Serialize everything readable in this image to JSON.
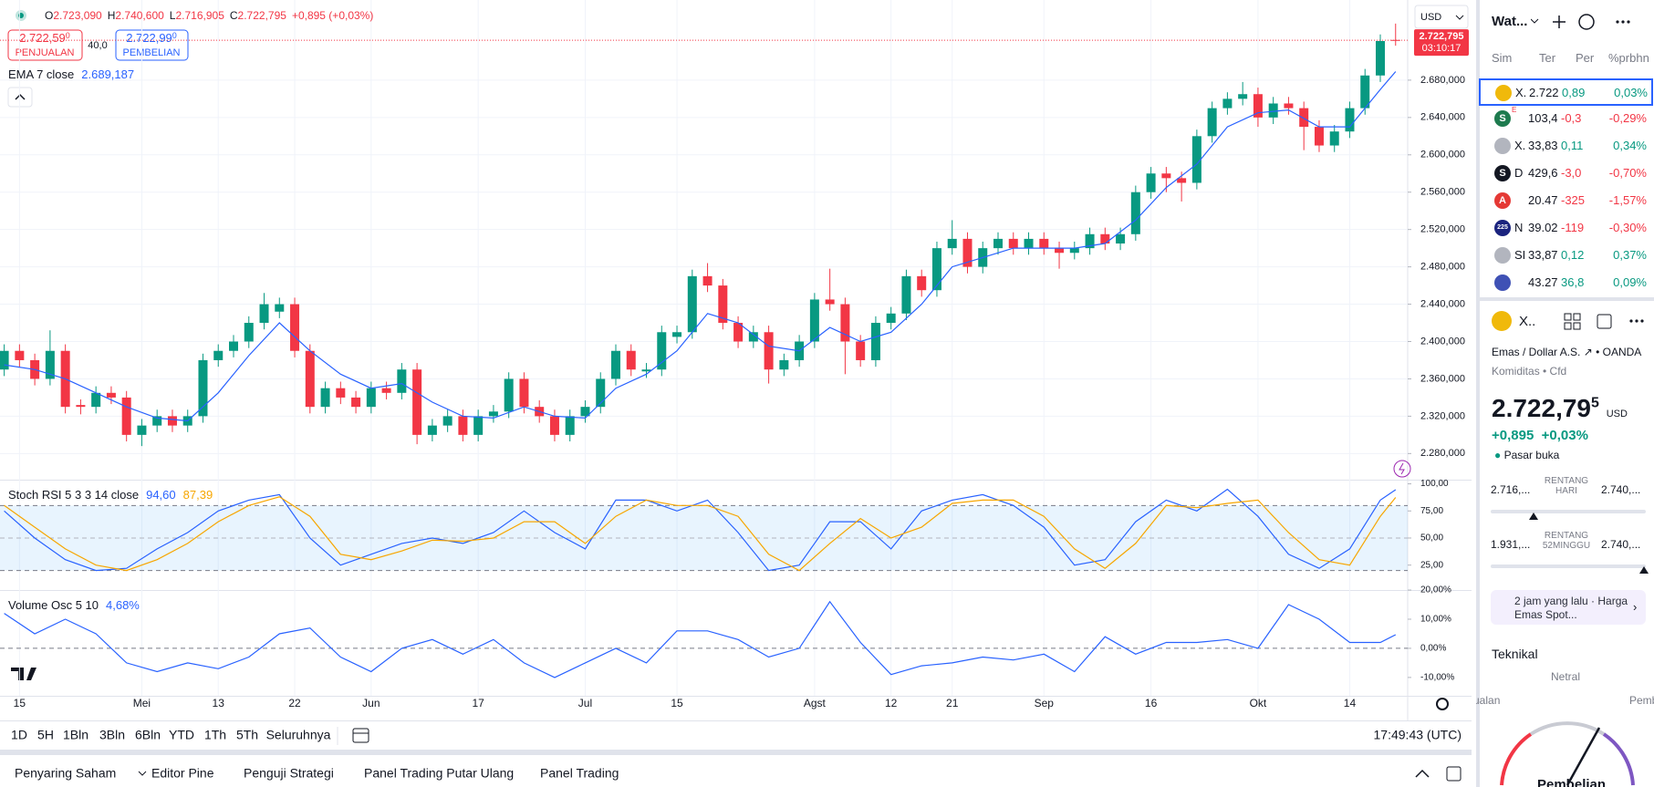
{
  "chart_data": [
    {
      "type": "candlestick",
      "categories": [
        null,
        "15",
        null,
        null,
        null,
        null,
        null,
        null,
        null,
        "Mei",
        null,
        null,
        null,
        null,
        "13",
        null,
        null,
        null,
        null,
        "22",
        null,
        null,
        null,
        null,
        "Jun",
        null,
        null,
        null,
        null,
        null,
        null,
        "17",
        null,
        null,
        null,
        null,
        null,
        null,
        "Jul",
        null,
        null,
        null,
        null,
        null,
        "15",
        null,
        null,
        null,
        null,
        null,
        null,
        null,
        null,
        "Agst",
        null,
        null,
        null,
        null,
        "12",
        null,
        null,
        null,
        "21",
        null,
        null,
        null,
        null,
        null,
        "Sep",
        null,
        null,
        null,
        null,
        null,
        null,
        "16",
        null,
        null,
        null,
        null,
        null,
        null,
        "Okt",
        null,
        null,
        null,
        null,
        null,
        "14",
        null,
        null,
        null
      ],
      "ohlc": [
        [
          2370,
          2397,
          2363,
          2390
        ],
        [
          2390,
          2397,
          2373,
          2380
        ],
        [
          2380,
          2387,
          2353,
          2360
        ],
        [
          2360,
          2412,
          2353,
          2390
        ],
        [
          2390,
          2397,
          2323,
          2330
        ],
        [
          2332,
          2338,
          2322,
          2330
        ],
        [
          2330,
          2352,
          2323,
          2345
        ],
        [
          2345,
          2352,
          2333,
          2340
        ],
        [
          2340,
          2347,
          2293,
          2300
        ],
        [
          2300,
          2317,
          2288,
          2310
        ],
        [
          2310,
          2327,
          2303,
          2320
        ],
        [
          2320,
          2327,
          2303,
          2310
        ],
        [
          2310,
          2327,
          2303,
          2320
        ],
        [
          2320,
          2387,
          2313,
          2380
        ],
        [
          2380,
          2397,
          2373,
          2390
        ],
        [
          2390,
          2407,
          2383,
          2400
        ],
        [
          2400,
          2427,
          2393,
          2420
        ],
        [
          2420,
          2452,
          2413,
          2440
        ],
        [
          2432,
          2447,
          2425,
          2440
        ],
        [
          2440,
          2447,
          2383,
          2390
        ],
        [
          2390,
          2397,
          2323,
          2330
        ],
        [
          2330,
          2357,
          2323,
          2350
        ],
        [
          2350,
          2357,
          2333,
          2340
        ],
        [
          2340,
          2347,
          2323,
          2330
        ],
        [
          2330,
          2357,
          2323,
          2350
        ],
        [
          2350,
          2357,
          2338,
          2345
        ],
        [
          2345,
          2377,
          2338,
          2370
        ],
        [
          2370,
          2377,
          2290,
          2300
        ],
        [
          2300,
          2317,
          2293,
          2310
        ],
        [
          2310,
          2327,
          2303,
          2320
        ],
        [
          2320,
          2327,
          2293,
          2300
        ],
        [
          2300,
          2327,
          2293,
          2320
        ],
        [
          2320,
          2332,
          2313,
          2325
        ],
        [
          2325,
          2367,
          2318,
          2360
        ],
        [
          2360,
          2367,
          2323,
          2330
        ],
        [
          2330,
          2337,
          2313,
          2320
        ],
        [
          2320,
          2327,
          2293,
          2300
        ],
        [
          2300,
          2327,
          2293,
          2320
        ],
        [
          2320,
          2337,
          2313,
          2330
        ],
        [
          2330,
          2367,
          2323,
          2360
        ],
        [
          2360,
          2397,
          2353,
          2390
        ],
        [
          2390,
          2397,
          2363,
          2370
        ],
        [
          2368,
          2377,
          2361,
          2370
        ],
        [
          2370,
          2417,
          2363,
          2410
        ],
        [
          2405,
          2417,
          2398,
          2410
        ],
        [
          2410,
          2477,
          2403,
          2470
        ],
        [
          2470,
          2484,
          2453,
          2460
        ],
        [
          2460,
          2467,
          2413,
          2420
        ],
        [
          2420,
          2427,
          2393,
          2400
        ],
        [
          2400,
          2417,
          2393,
          2410
        ],
        [
          2410,
          2417,
          2355,
          2370
        ],
        [
          2370,
          2387,
          2363,
          2380
        ],
        [
          2380,
          2407,
          2373,
          2400
        ],
        [
          2400,
          2452,
          2393,
          2445
        ],
        [
          2445,
          2478,
          2433,
          2440
        ],
        [
          2440,
          2447,
          2365,
          2400
        ],
        [
          2400,
          2407,
          2373,
          2380
        ],
        [
          2380,
          2427,
          2373,
          2420
        ],
        [
          2420,
          2437,
          2413,
          2430
        ],
        [
          2430,
          2477,
          2423,
          2470
        ],
        [
          2470,
          2477,
          2448,
          2455
        ],
        [
          2455,
          2507,
          2448,
          2500
        ],
        [
          2500,
          2530,
          2493,
          2510
        ],
        [
          2510,
          2517,
          2473,
          2480
        ],
        [
          2480,
          2507,
          2473,
          2500
        ],
        [
          2500,
          2517,
          2493,
          2510
        ],
        [
          2510,
          2517,
          2493,
          2500
        ],
        [
          2500,
          2517,
          2493,
          2510
        ],
        [
          2510,
          2517,
          2493,
          2500
        ],
        [
          2500,
          2507,
          2478,
          2495
        ],
        [
          2495,
          2507,
          2488,
          2500
        ],
        [
          2500,
          2522,
          2493,
          2515
        ],
        [
          2515,
          2522,
          2498,
          2505
        ],
        [
          2505,
          2522,
          2498,
          2515
        ],
        [
          2515,
          2567,
          2508,
          2560
        ],
        [
          2560,
          2587,
          2553,
          2580
        ],
        [
          2580,
          2587,
          2560,
          2575
        ],
        [
          2575,
          2582,
          2550,
          2570
        ],
        [
          2570,
          2627,
          2563,
          2620
        ],
        [
          2620,
          2657,
          2613,
          2650
        ],
        [
          2650,
          2667,
          2643,
          2660
        ],
        [
          2660,
          2678,
          2653,
          2665
        ],
        [
          2665,
          2672,
          2630,
          2640
        ],
        [
          2640,
          2662,
          2633,
          2655
        ],
        [
          2655,
          2662,
          2643,
          2650
        ],
        [
          2650,
          2657,
          2605,
          2630
        ],
        [
          2630,
          2637,
          2603,
          2610
        ],
        [
          2610,
          2632,
          2603,
          2625
        ],
        [
          2625,
          2657,
          2618,
          2650
        ],
        [
          2650,
          2692,
          2643,
          2685
        ],
        [
          2685,
          2729,
          2678,
          2721.9
        ],
        [
          2723.09,
          2740.6,
          2716.905,
          2722.795
        ]
      ],
      "up_color": "#089981",
      "down_color": "#f23645",
      "series": [
        {
          "name": "EMA 7 close",
          "color": "#2962ff",
          "legend_value": "2.689,187",
          "x": [
            0,
            2,
            4,
            6,
            8,
            10,
            12,
            14,
            16,
            18,
            20,
            22,
            24,
            26,
            28,
            30,
            32,
            34,
            36,
            38,
            40,
            42,
            44,
            46,
            48,
            50,
            52,
            54,
            56,
            58,
            60,
            62,
            64,
            66,
            68,
            70,
            72,
            74,
            76,
            78,
            80,
            82,
            84,
            86,
            88,
            90,
            91
          ],
          "values": [
            2375,
            2370,
            2360,
            2345,
            2330,
            2318,
            2315,
            2345,
            2385,
            2420,
            2390,
            2365,
            2350,
            2355,
            2335,
            2320,
            2318,
            2330,
            2320,
            2318,
            2350,
            2365,
            2390,
            2430,
            2420,
            2395,
            2390,
            2415,
            2400,
            2410,
            2440,
            2480,
            2490,
            2500,
            2500,
            2500,
            2505,
            2530,
            2565,
            2590,
            2630,
            2645,
            2648,
            2630,
            2630,
            2670,
            2689.187
          ]
        }
      ],
      "ylim": [
        2252,
        2760
      ],
      "yticks": [
        {
          "value": 2280,
          "label": "2.280,000"
        },
        {
          "value": 2320,
          "label": "2.320,000"
        },
        {
          "value": 2360,
          "label": "2.360,000"
        },
        {
          "value": 2400,
          "label": "2.400,000"
        },
        {
          "value": 2440,
          "label": "2.440,000"
        },
        {
          "value": 2480,
          "label": "2.480,000"
        },
        {
          "value": 2520,
          "label": "2.520,000"
        },
        {
          "value": 2560,
          "label": "2.560,000"
        },
        {
          "value": 2600,
          "label": "2.600,000"
        },
        {
          "value": 2640,
          "label": "2.640,000"
        },
        {
          "value": 2680,
          "label": "2.680,000"
        }
      ],
      "grid": true
    },
    {
      "type": "line",
      "title": "Stoch RSI 5 3 3 14 close",
      "x": [
        0,
        2,
        4,
        6,
        8,
        10,
        12,
        14,
        16,
        18,
        20,
        22,
        24,
        26,
        28,
        30,
        32,
        34,
        36,
        38,
        40,
        42,
        44,
        46,
        48,
        50,
        52,
        54,
        56,
        58,
        60,
        62,
        64,
        66,
        68,
        70,
        72,
        74,
        76,
        78,
        80,
        82,
        84,
        86,
        88,
        90,
        91
      ],
      "series": [
        {
          "color": "#2962ff",
          "legend_value": "94,60",
          "values": [
            75,
            50,
            30,
            20,
            22,
            40,
            55,
            75,
            85,
            90,
            50,
            25,
            35,
            45,
            50,
            45,
            55,
            75,
            55,
            40,
            85,
            85,
            75,
            85,
            55,
            20,
            25,
            65,
            65,
            40,
            75,
            85,
            90,
            80,
            60,
            25,
            30,
            65,
            85,
            75,
            95,
            70,
            35,
            22,
            40,
            85,
            94.6
          ]
        },
        {
          "color": "#f7a600",
          "legend_value": "87,39",
          "values": [
            80,
            60,
            40,
            25,
            20,
            30,
            45,
            65,
            80,
            88,
            70,
            35,
            30,
            38,
            48,
            47,
            50,
            65,
            65,
            45,
            70,
            85,
            80,
            80,
            70,
            35,
            20,
            45,
            68,
            50,
            60,
            82,
            85,
            85,
            70,
            40,
            22,
            45,
            80,
            78,
            82,
            85,
            55,
            30,
            25,
            70,
            87.39
          ]
        }
      ],
      "band": [
        20,
        80
      ],
      "midline": 50,
      "ylim": [
        2,
        103
      ],
      "yticks": [
        {
          "value": 25,
          "label": "25,00"
        },
        {
          "value": 50,
          "label": "50,00"
        },
        {
          "value": 75,
          "label": "75,00"
        },
        {
          "value": 100,
          "label": "100,00"
        }
      ]
    },
    {
      "type": "line",
      "title": "Volume Osc 5 10",
      "x": [
        0,
        2,
        4,
        6,
        8,
        10,
        12,
        14,
        16,
        18,
        20,
        22,
        24,
        26,
        28,
        30,
        32,
        34,
        36,
        38,
        40,
        42,
        44,
        46,
        48,
        50,
        52,
        54,
        56,
        58,
        60,
        62,
        64,
        66,
        68,
        70,
        72,
        74,
        76,
        78,
        80,
        82,
        84,
        86,
        88,
        90,
        91
      ],
      "series": [
        {
          "color": "#2962ff",
          "legend_value": "4,68%",
          "values": [
            12,
            5,
            10,
            5,
            -5,
            -8,
            -5,
            -7,
            -3,
            5,
            7,
            -3,
            -8,
            0,
            3,
            -2,
            3,
            -5,
            -10,
            -5,
            0,
            -5,
            6,
            6,
            3,
            -3,
            0,
            16,
            2,
            -9,
            -6,
            -5,
            -3,
            -4,
            -2,
            -8,
            4,
            -2,
            2,
            2,
            3,
            0,
            15,
            10,
            2,
            2,
            4.68
          ]
        }
      ],
      "baseline": 0,
      "ylim": [
        -16.3,
        19.7
      ],
      "yticks": [
        {
          "value": -10,
          "label": "-10,00%"
        },
        {
          "value": 0,
          "label": "0,00%"
        },
        {
          "value": 10,
          "label": "10,00%"
        },
        {
          "value": 20,
          "label": "20,00%"
        }
      ]
    }
  ],
  "ui": {
    "ohlc_legend": [
      "O",
      "2.723,090",
      "H",
      "2.740,600",
      "L",
      "2.716,905",
      "C",
      "2.722,795",
      "+0,895 (+0,03%)"
    ],
    "sell": {
      "price": "2.722,59",
      "sup": "0",
      "label": "PENJUALAN"
    },
    "spread": "40,0",
    "buy": {
      "price": "2.722,99",
      "sup": "0",
      "label": "PEMBELIAN"
    },
    "currency": "USD",
    "price_tag": "2.722,795",
    "countdown": "03:10:17",
    "timeframes": [
      "1D",
      "5H",
      "1Bln",
      "3Bln",
      "6Bln",
      "YTD",
      "1Th",
      "5Th",
      "Seluruhnya"
    ],
    "clock": "17:49:43 (UTC)",
    "tabs": [
      "Penyaring Saham",
      "Editor Pine",
      "Penguji Strategi",
      "Panel Trading Putar Ulang",
      "Panel Trading"
    ],
    "watchlist": {
      "title": "Wat...",
      "columns": [
        "Sim",
        "Ter",
        "Per",
        "%prbhn"
      ],
      "rows": [
        {
          "symbol": "X.",
          "last": "2.722",
          "chg": "0,89",
          "pct": "0,03%"
        },
        {
          "icon": "S",
          "flag": "E",
          "last": "103,4",
          "chg": "-0,3",
          "pct": "-0,29%"
        },
        {
          "symbol": "X.",
          "last": "33,83",
          "chg": "0,11",
          "pct": "0,34%"
        },
        {
          "icon": "S",
          "symbol": "D",
          "last": "429,6",
          "chg": "-3,0",
          "pct": "-0,70%"
        },
        {
          "icon": "A",
          "last": "20.47",
          "chg": "-325",
          "pct": "-1,57%"
        },
        {
          "icon": "225",
          "symbol": "N",
          "last": "39.02",
          "chg": "-119",
          "pct": "-0,30%"
        },
        {
          "symbol": "SI",
          "last": "33,87",
          "chg": "0,12",
          "pct": "0,37%"
        },
        {
          "last": "43.27",
          "chg": "36,8",
          "pct": "0,09%"
        }
      ]
    },
    "symbol": {
      "short": "X..",
      "name": "Emas / Dollar A.S.",
      "exchange": "OANDA",
      "category": "Komiditas • Cfd",
      "price": "2.722,79",
      "price_sup": "5",
      "currency": "USD",
      "change": "+0,895",
      "change_pct": "+0,03%",
      "status": "Pasar buka",
      "day_low": "2.716,...",
      "day_label": "RENTANG HARI",
      "day_high": "2.740,...",
      "year_low": "1.931,...",
      "year_label": "RENTANG 52MINGGU",
      "year_high": "2.740,...",
      "news": "2 jam yang lalu · Harga Emas Spot...",
      "technical": "Teknikal",
      "gauge_mid": "Netral",
      "gauge_left": "Jualan",
      "gauge_right": "Pemb",
      "gauge_result": "Pembelian"
    }
  }
}
